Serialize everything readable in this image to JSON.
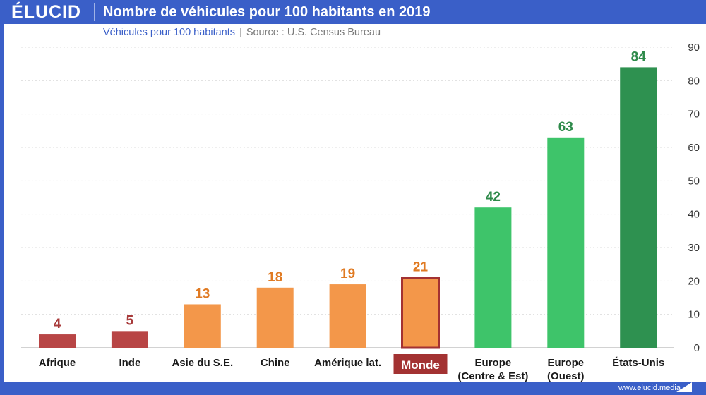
{
  "header": {
    "logo": "ÉLUCID",
    "title": "Nombre de véhicules pour 100 habitants en 2019"
  },
  "subtitle": {
    "unit": "Véhicules pour 100 habitants",
    "separator": "|",
    "source": "Source : U.S. Census Bureau"
  },
  "footer": {
    "website": "www.elucid.media"
  },
  "colors": {
    "low": "#b84545",
    "mid": "#f3974a",
    "high": "#3ec46a",
    "top": "#2e9150",
    "highlight_outline": "#a33232",
    "label_low": "#a83a3a",
    "label_mid": "#e07a22",
    "label_high": "#2e8a4a"
  },
  "chart_data": {
    "type": "bar",
    "title": "Nombre de véhicules pour 100 habitants en 2019",
    "ylabel": "Véhicules pour 100 habitants",
    "xlabel": "",
    "ylim": [
      0,
      90
    ],
    "yticks": [
      0,
      10,
      20,
      30,
      40,
      50,
      60,
      70,
      80,
      90
    ],
    "grid": true,
    "y_axis_side": "right",
    "categories": [
      "Afrique",
      "Inde",
      "Asie du S.E.",
      "Chine",
      "Amérique lat.",
      "Monde",
      "Europe\n(Centre & Est)",
      "Europe\n(Ouest)",
      "États-Unis"
    ],
    "values": [
      4,
      5,
      13,
      18,
      19,
      21,
      42,
      63,
      84
    ],
    "bar_groups": [
      "low",
      "low",
      "mid",
      "mid",
      "mid",
      "mid",
      "high",
      "high",
      "top"
    ],
    "highlighted_category": "Monde"
  }
}
